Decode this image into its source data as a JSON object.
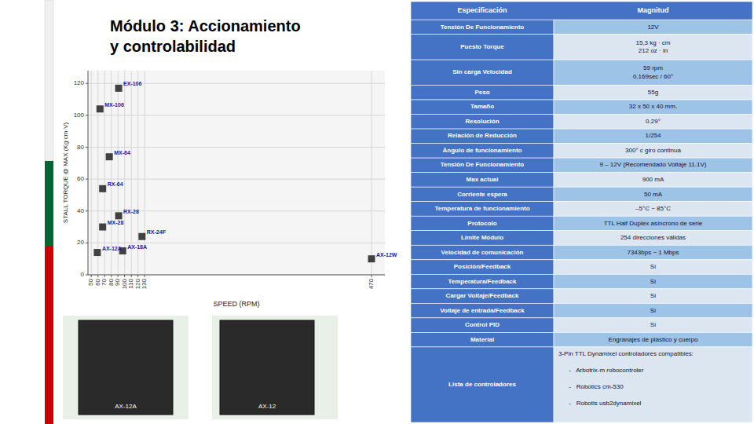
{
  "chart_data": [
    {
      "type": "scatter",
      "title": "Módulo 3: Accionamiento",
      "subtitle": "y controlabilidad",
      "x_label": "SPEED (RPM)",
      "y_label": "STALL TORQUE @ MAX (Kg·cm·V)",
      "x": [
        59,
        63,
        67,
        67,
        77,
        91,
        91,
        97,
        126,
        470
      ],
      "values": [
        14,
        104,
        54,
        30,
        74,
        117,
        37,
        15,
        24,
        10
      ],
      "labels": [
        "AX-12A",
        "MX-106",
        "RX-64",
        "MX-28",
        "MX-64",
        "EX-106",
        "RX-28",
        "AX-18A",
        "RX-24F",
        "AX-12W"
      ],
      "color": "#222222",
      "marker": "square",
      "xlim": [
        45,
        490
      ],
      "xticks": [
        50,
        60,
        70,
        80,
        90,
        100,
        110,
        120,
        130,
        470
      ],
      "ylim": [
        0,
        128
      ],
      "yticks": [
        0,
        20,
        40,
        60,
        80,
        100,
        120
      ],
      "grid": true,
      "annotations": [
        "AX-12A",
        "AX-12"
      ]
    },
    {
      "type": "table",
      "color": "#4472c4",
      "columns": [
        "Especificación",
        "Magnitud"
      ],
      "rows": [
        [
          "Tensión De Funcionamiento",
          "12V"
        ],
        [
          "Puesto Torque",
          "15,3 kg · cm\n212 oz · in"
        ],
        [
          "Sin carga Velocidad",
          "59 rpm\n0.169sec / 60°"
        ],
        [
          "Peso",
          "55g"
        ],
        [
          "Tamaño",
          "32 x 50 x 40 mm."
        ],
        [
          "Resolución",
          "0.29°"
        ],
        [
          "Relación de Reducción",
          "1/254"
        ],
        [
          "Ángulo de funcionamiento",
          "300° c giro continua"
        ],
        [
          "Tensión De Funcionamiento",
          "9 – 12V (Recomendado Voltaje 11.1V)"
        ],
        [
          "Max actual",
          "900 mA"
        ],
        [
          "Corriente espera",
          "50 mA"
        ],
        [
          "Temperatura de funcionamiento",
          "–5°C ~ 85°C"
        ],
        [
          "Protocolo",
          "TTL Half Duplex asíncrono de serie"
        ],
        [
          "Límite Módulo",
          "254 direcciones válidas"
        ],
        [
          "Velocidad de comunicación",
          "7343bps ~ 1 Mbps"
        ],
        [
          "Posición/Feedback",
          "Sí"
        ],
        [
          "Temperatura/Feedback",
          "Sí"
        ],
        [
          "Cargar Voltaje/Feedback",
          "Sí"
        ],
        [
          "Voltaje de entrada/Feedback",
          "Sí"
        ],
        [
          "Control PID",
          "Sí"
        ],
        [
          "Material",
          "Engranajes de plástico y cuerpo"
        ],
        [
          "Lista de controladores",
          "3-Pin TTL Dynamixel controladores compatibles:\n\n      -   Arbotrix-m robocontroler\n\n      -   Robotics cm-530\n\n      -   Robotis usb2dynamixel"
        ]
      ]
    }
  ]
}
